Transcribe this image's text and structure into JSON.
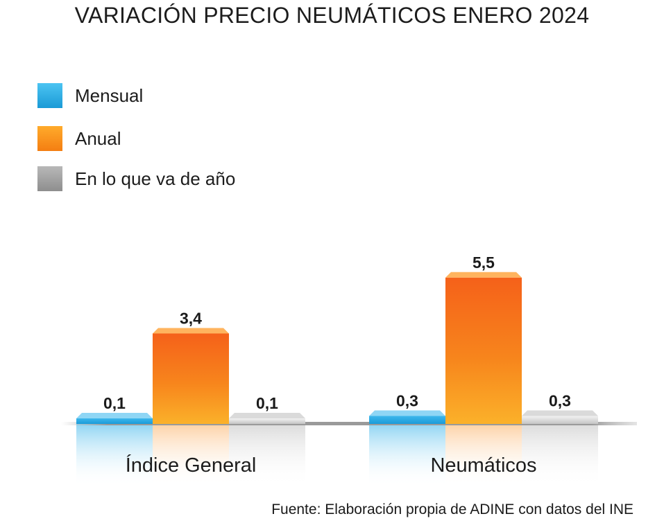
{
  "title": "VARIACIÓN PRECIO NEUMÁTICOS ENERO 2024",
  "source": "Fuente: Elaboración propia de ADINE con datos del INE",
  "chart_data": {
    "type": "bar",
    "categories": [
      "Índice General",
      "Neumáticos"
    ],
    "series": [
      {
        "name": "Mensual",
        "values": [
          0.1,
          0.3
        ],
        "labels": [
          "0,1",
          "0,3"
        ],
        "color": "#29a9e1"
      },
      {
        "name": "Anual",
        "values": [
          3.4,
          5.5
        ],
        "labels": [
          "3,4",
          "5,5"
        ],
        "color": "#f7941d"
      },
      {
        "name": "En lo que va de año",
        "values": [
          0.1,
          0.3
        ],
        "labels": [
          "0,1",
          "0,3"
        ],
        "color": "#a6a6a6"
      }
    ],
    "legend_position": "top-left",
    "grid": false
  }
}
